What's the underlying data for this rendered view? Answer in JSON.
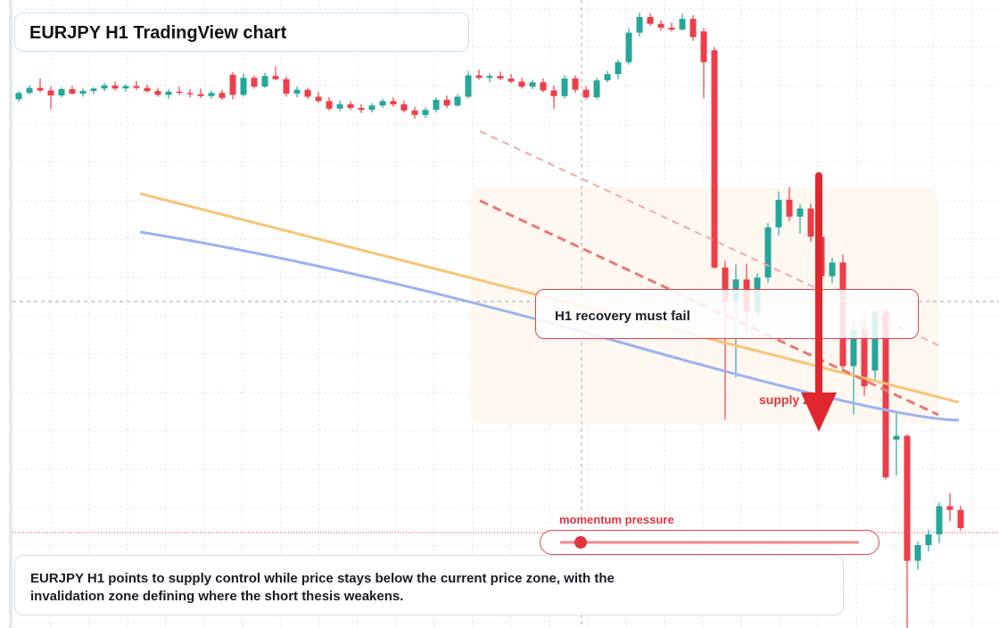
{
  "chart_data": {
    "type": "candlestick",
    "title": "EURJPY H1 TradingView chart",
    "ylim": [
      0,
      100
    ],
    "up_color": "#26a69a",
    "down_color": "#ef3d4a",
    "candles": [
      [
        84.2,
        85.5,
        83.8,
        85.2
      ],
      [
        85.2,
        86.4,
        84.9,
        86.0
      ],
      [
        86.0,
        87.5,
        85.3,
        85.6
      ],
      [
        85.6,
        86.2,
        82.6,
        84.8
      ],
      [
        84.8,
        86.1,
        84.5,
        85.8
      ],
      [
        85.8,
        86.3,
        84.9,
        85.1
      ],
      [
        85.1,
        85.9,
        84.6,
        85.5
      ],
      [
        85.5,
        86.1,
        85.0,
        85.9
      ],
      [
        85.9,
        86.8,
        85.5,
        86.4
      ],
      [
        86.4,
        87.0,
        85.6,
        85.9
      ],
      [
        85.9,
        86.6,
        85.4,
        86.3
      ],
      [
        86.3,
        87.1,
        85.7,
        86.0
      ],
      [
        86.0,
        86.5,
        85.2,
        85.5
      ],
      [
        85.5,
        86.0,
        84.6,
        84.9
      ],
      [
        84.9,
        85.8,
        84.3,
        85.4
      ],
      [
        85.4,
        86.2,
        84.9,
        85.2
      ],
      [
        85.2,
        85.8,
        84.5,
        85.0
      ],
      [
        85.0,
        85.9,
        84.4,
        84.7
      ],
      [
        84.7,
        85.6,
        84.3,
        85.2
      ],
      [
        85.2,
        85.7,
        84.1,
        84.4
      ],
      [
        88.1,
        88.5,
        84.2,
        84.9
      ],
      [
        84.9,
        88.3,
        84.6,
        87.6
      ],
      [
        87.6,
        88.0,
        85.9,
        86.2
      ],
      [
        86.2,
        88.4,
        86.0,
        87.9
      ],
      [
        87.9,
        89.4,
        87.2,
        87.4
      ],
      [
        87.4,
        87.8,
        84.6,
        85.1
      ],
      [
        85.1,
        86.2,
        84.5,
        85.7
      ],
      [
        85.7,
        86.0,
        84.2,
        84.6
      ],
      [
        84.6,
        85.4,
        83.6,
        83.9
      ],
      [
        83.9,
        84.5,
        82.4,
        82.7
      ],
      [
        82.7,
        84.0,
        82.3,
        83.4
      ],
      [
        83.4,
        83.9,
        82.5,
        82.8
      ],
      [
        82.8,
        83.4,
        82.0,
        82.5
      ],
      [
        82.5,
        83.6,
        82.1,
        83.2
      ],
      [
        83.2,
        84.3,
        82.8,
        83.9
      ],
      [
        83.9,
        84.5,
        83.0,
        83.4
      ],
      [
        83.4,
        84.0,
        82.1,
        82.4
      ],
      [
        82.4,
        83.0,
        81.1,
        81.7
      ],
      [
        81.7,
        82.9,
        81.2,
        82.5
      ],
      [
        82.5,
        84.5,
        82.1,
        84.1
      ],
      [
        84.1,
        84.8,
        82.8,
        83.2
      ],
      [
        83.2,
        85.0,
        83.0,
        84.6
      ],
      [
        84.6,
        88.7,
        84.3,
        88.0
      ],
      [
        88.0,
        88.9,
        87.3,
        87.6
      ],
      [
        87.6,
        88.3,
        86.9,
        87.9
      ],
      [
        87.9,
        88.6,
        87.2,
        87.5
      ],
      [
        87.5,
        88.2,
        86.7,
        87.0
      ],
      [
        87.0,
        87.6,
        85.9,
        86.2
      ],
      [
        86.2,
        87.3,
        85.8,
        86.9
      ],
      [
        86.9,
        87.5,
        85.3,
        85.6
      ],
      [
        85.6,
        86.4,
        82.7,
        84.7
      ],
      [
        84.7,
        88.0,
        84.3,
        87.5
      ],
      [
        87.5,
        88.0,
        85.2,
        85.7
      ],
      [
        85.7,
        86.3,
        84.2,
        84.5
      ],
      [
        84.5,
        87.6,
        84.2,
        87.2
      ],
      [
        87.2,
        88.7,
        86.9,
        88.2
      ],
      [
        88.2,
        90.5,
        87.4,
        90.1
      ],
      [
        90.1,
        95.5,
        89.7,
        94.8
      ],
      [
        94.8,
        98.0,
        94.2,
        97.3
      ],
      [
        97.3,
        97.9,
        95.9,
        96.2
      ],
      [
        96.2,
        96.8,
        95.1,
        95.6
      ],
      [
        95.6,
        96.4,
        95.0,
        95.3
      ],
      [
        95.3,
        97.8,
        95.1,
        97.0
      ],
      [
        97.0,
        97.6,
        93.5,
        94.1
      ],
      [
        95.0,
        95.5,
        84.4,
        90.1
      ],
      [
        92.0,
        92.5,
        57.2,
        57.4
      ],
      [
        57.4,
        58.5,
        33.2,
        52.0
      ],
      [
        52.0,
        57.9,
        39.9,
        55.5
      ],
      [
        55.5,
        58.0,
        47.0,
        50.4
      ],
      [
        50.4,
        56.5,
        49.5,
        55.8
      ],
      [
        55.8,
        64.5,
        55.0,
        63.8
      ],
      [
        63.8,
        69.5,
        62.5,
        68.2
      ],
      [
        68.2,
        70.2,
        64.8,
        65.5
      ],
      [
        65.5,
        67.5,
        62.8,
        66.8
      ],
      [
        66.8,
        67.6,
        61.5,
        62.3
      ],
      [
        62.3,
        63.0,
        55.2,
        56.0
      ],
      [
        56.0,
        59.0,
        54.9,
        58.2
      ],
      [
        58.2,
        59.5,
        40.6,
        41.7
      ],
      [
        41.7,
        49.0,
        34.0,
        47.5
      ],
      [
        47.5,
        50.5,
        37.0,
        38.5
      ],
      [
        41.0,
        50.6,
        39.5,
        50.4
      ],
      [
        50.4,
        50.6,
        23.7,
        24.0
      ],
      [
        30.0,
        34.5,
        24.3,
        30.6
      ],
      [
        30.6,
        30.8,
        0.0,
        10.7
      ],
      [
        10.7,
        13.8,
        9.3,
        13.2
      ],
      [
        13.2,
        15.6,
        12.2,
        14.9
      ],
      [
        14.9,
        20.0,
        13.5,
        19.4
      ],
      [
        19.4,
        21.5,
        17.0,
        18.8
      ],
      [
        18.8,
        19.5,
        15.5,
        15.9
      ]
    ],
    "annotations": [
      "H1 recovery must fail",
      "supply zone",
      "momentum pressure"
    ],
    "caption": "EURJPY H1 points to supply control while price stays below the current price zone, with the invalidation zone defining where the short thesis weakens."
  }
}
